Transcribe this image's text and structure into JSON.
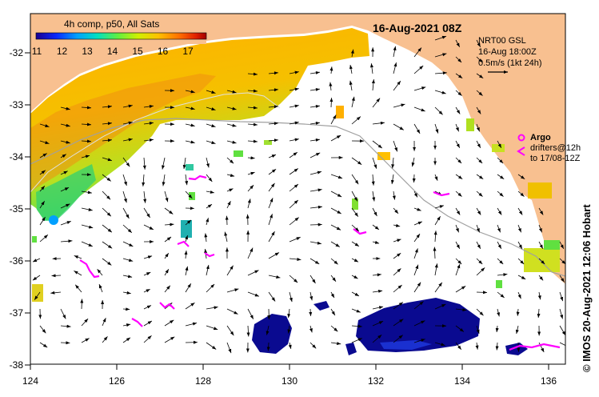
{
  "title": "16-Aug-2021 08Z",
  "colorbar": {
    "title": "4h comp, p50, All Sats",
    "ticks": [
      "11",
      "12",
      "13",
      "14",
      "15",
      "16",
      "17"
    ],
    "colors": [
      "#1a0090",
      "#0a28ff",
      "#00a0ff",
      "#00e0c0",
      "#60f040",
      "#d0f000",
      "#ffc000",
      "#ff7000",
      "#e02000",
      "#a00000"
    ]
  },
  "current_info": {
    "source": "NRT00 GSL",
    "date": "16-Aug 18:00Z",
    "scale": "0.5m/s (1kt 24h)"
  },
  "argo_legend": {
    "label": "Argo",
    "drifters": "drifters@12h",
    "period": "to 17/08-12Z"
  },
  "credit": "© IMOS 20-Aug-2021 12:06 Hobart",
  "axes": {
    "lon_ticks": [
      "124",
      "126",
      "128",
      "130",
      "132",
      "134",
      "136"
    ],
    "lat_ticks": [
      "-32",
      "-33",
      "-34",
      "-35",
      "-36",
      "-37",
      "-38"
    ]
  },
  "colors": {
    "land": "#f8c090",
    "ocean": "#ffffff",
    "argo": "#ff00ff",
    "depth_contour": "#a0a0a0"
  }
}
